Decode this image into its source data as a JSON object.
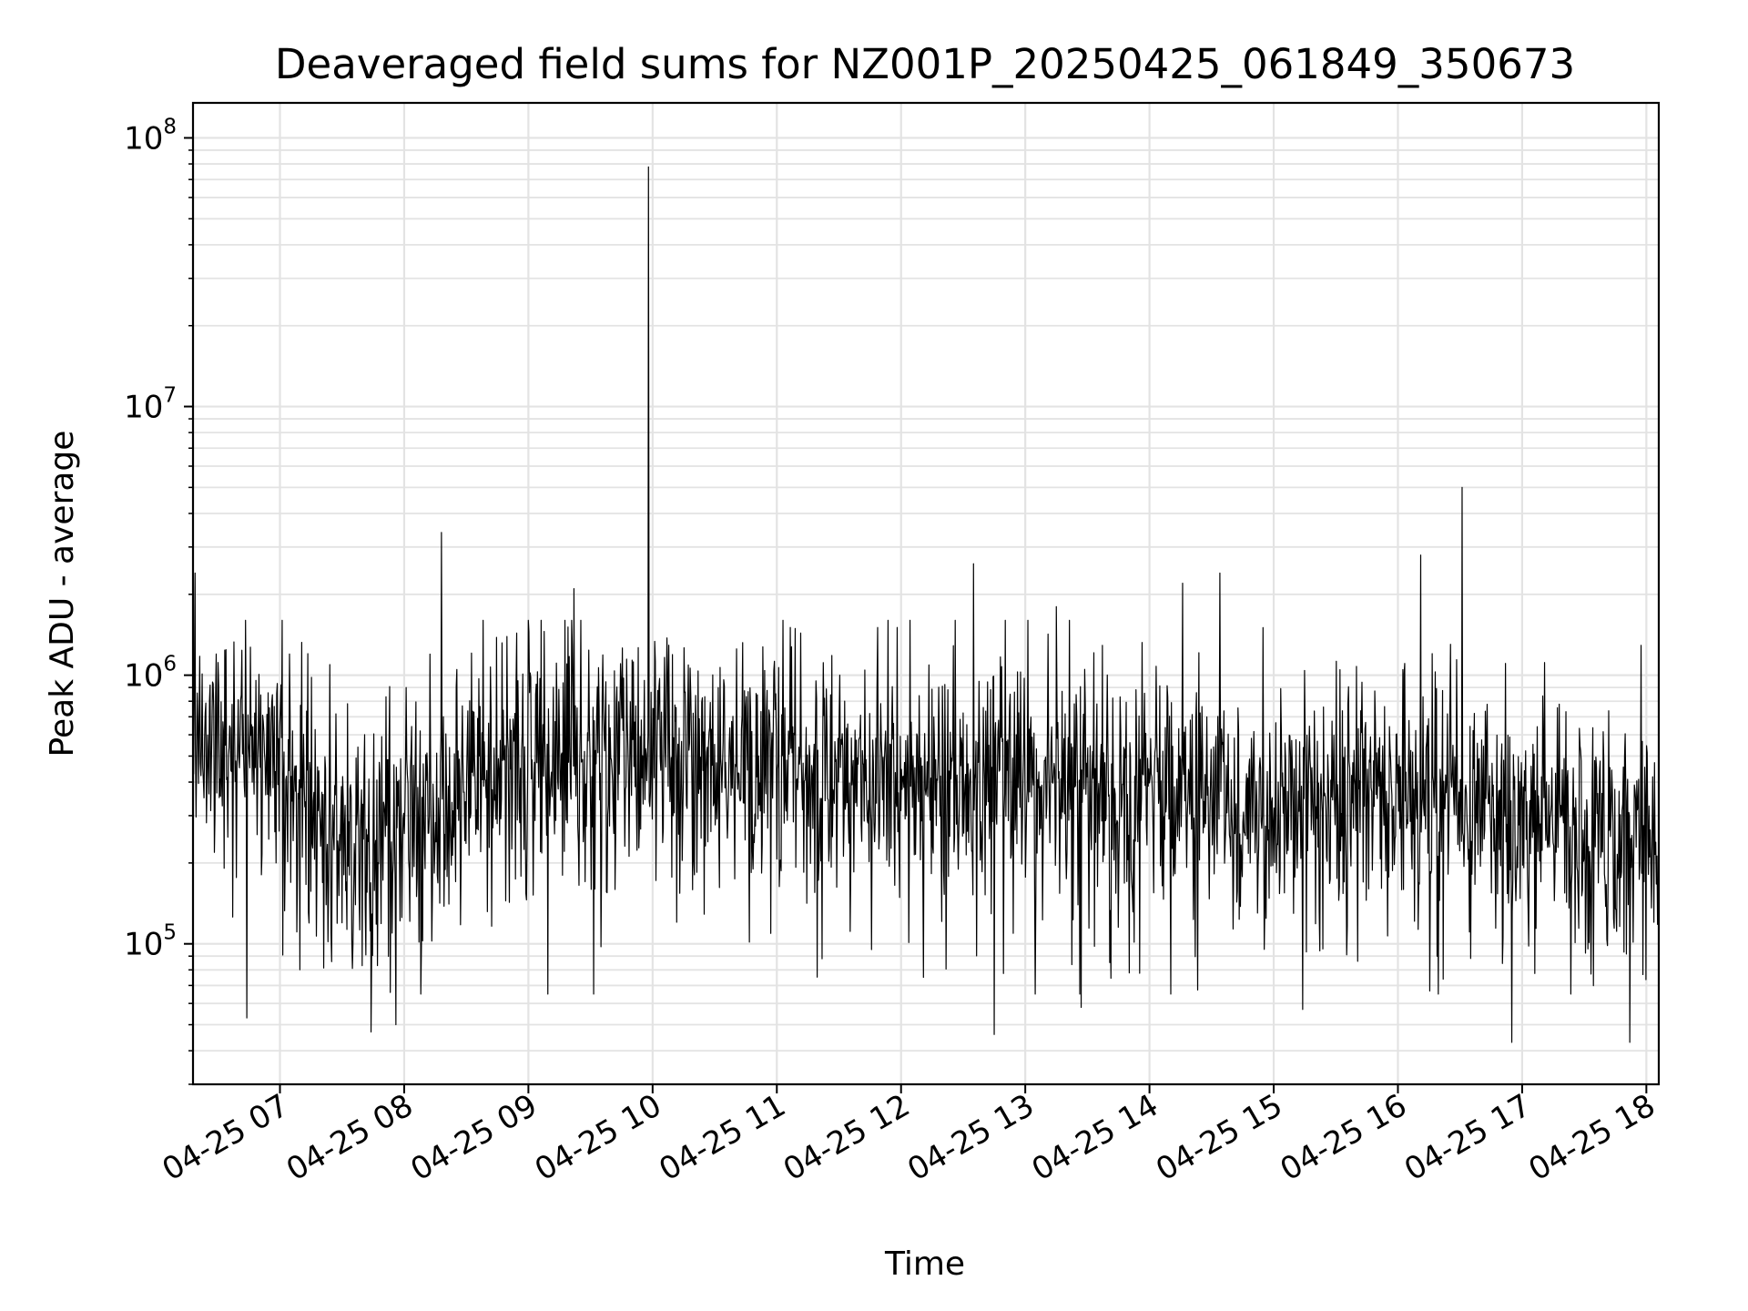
{
  "chart_data": {
    "type": "line",
    "title": "Deaveraged field sums for NZ001P_20250425_061849_350673",
    "xlabel": "Time",
    "ylabel": "Peak ADU - average",
    "yscale": "log",
    "ylim": [
      30000,
      135000000
    ],
    "xlim": [
      "2025-04-25 06:18",
      "2025-04-25 18:06"
    ],
    "grid": true,
    "line_color": "#000000",
    "x_ticks": [
      "04-25 07",
      "04-25 08",
      "04-25 09",
      "04-25 10",
      "04-25 11",
      "04-25 12",
      "04-25 13",
      "04-25 14",
      "04-25 15",
      "04-25 16",
      "04-25 17",
      "04-25 18"
    ],
    "y_ticks": [
      {
        "base": "10",
        "exp": "5"
      },
      {
        "base": "10",
        "exp": "6"
      },
      {
        "base": "10",
        "exp": "7"
      },
      {
        "base": "10",
        "exp": "8"
      }
    ],
    "baseline_profile": [
      {
        "t": "2025-04-25 06:18",
        "y": 600000
      },
      {
        "t": "2025-04-25 07:00",
        "y": 500000
      },
      {
        "t": "2025-04-25 07:40",
        "y": 190000
      },
      {
        "t": "2025-04-25 08:30",
        "y": 330000
      },
      {
        "t": "2025-04-25 09:00",
        "y": 480000
      },
      {
        "t": "2025-04-25 10:30",
        "y": 480000
      },
      {
        "t": "2025-04-25 12:00",
        "y": 420000
      },
      {
        "t": "2025-04-25 14:00",
        "y": 370000
      },
      {
        "t": "2025-04-25 15:00",
        "y": 320000
      },
      {
        "t": "2025-04-25 16:00",
        "y": 370000
      },
      {
        "t": "2025-04-25 17:30",
        "y": 250000
      },
      {
        "t": "2025-04-25 18:06",
        "y": 280000
      }
    ],
    "peaks": [
      {
        "t": "2025-04-25 06:19",
        "y": 2400000
      },
      {
        "t": "2025-04-25 08:18",
        "y": 3400000
      },
      {
        "t": "2025-04-25 09:22",
        "y": 2100000
      },
      {
        "t": "2025-04-25 09:58",
        "y": 78000000
      },
      {
        "t": "2025-04-25 12:35",
        "y": 2600000
      },
      {
        "t": "2025-04-25 13:15",
        "y": 1800000
      },
      {
        "t": "2025-04-25 14:16",
        "y": 2200000
      },
      {
        "t": "2025-04-25 14:34",
        "y": 2400000
      },
      {
        "t": "2025-04-25 16:11",
        "y": 2800000
      },
      {
        "t": "2025-04-25 16:31",
        "y": 5000000
      }
    ],
    "troughs": [
      {
        "t": "2025-04-25 06:44",
        "y": 53000
      },
      {
        "t": "2025-04-25 07:44",
        "y": 47000
      },
      {
        "t": "2025-04-25 07:56",
        "y": 50000
      },
      {
        "t": "2025-04-25 12:45",
        "y": 46000
      },
      {
        "t": "2025-04-25 13:27",
        "y": 58000
      },
      {
        "t": "2025-04-25 15:14",
        "y": 57000
      },
      {
        "t": "2025-04-25 16:55",
        "y": 43000
      },
      {
        "t": "2025-04-25 17:52",
        "y": 43000
      }
    ]
  }
}
